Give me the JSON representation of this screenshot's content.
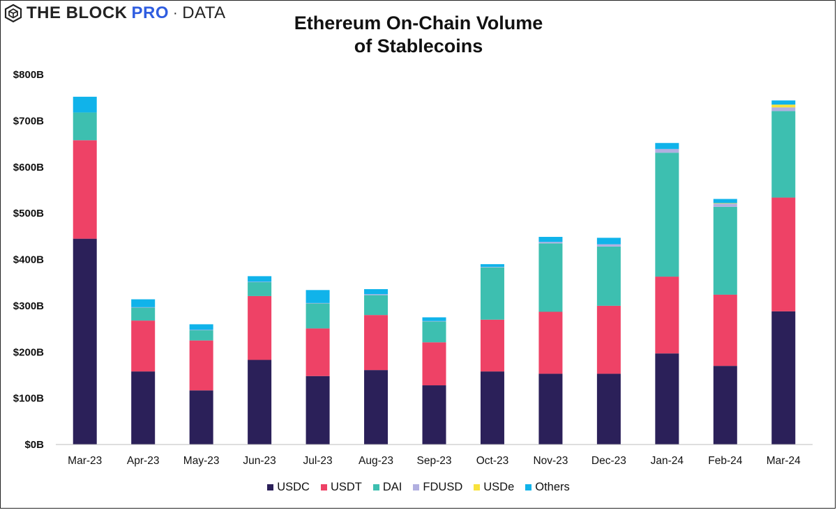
{
  "brand": {
    "part1": "THE BLOCK",
    "part2": "PRO",
    "separator": "·",
    "part3": "DATA",
    "logo_icon": "cube-icon"
  },
  "title_line1": "Ethereum On-Chain Volume",
  "title_line2": "of Stablecoins",
  "colors": {
    "USDC": "#2b2059",
    "USDT": "#ee4266",
    "DAI": "#3dbfb0",
    "FDUSD": "#b1afe0",
    "USDe": "#f8e23c",
    "Others": "#10b3ea"
  },
  "chart_data": {
    "type": "bar",
    "stacked": true,
    "title": "Ethereum On-Chain Volume of Stablecoins",
    "xlabel": "",
    "ylabel": "",
    "ylim": [
      0,
      800
    ],
    "y_unit": "B",
    "y_ticks": [
      "$0B",
      "$100B",
      "$200B",
      "$300B",
      "$400B",
      "$500B",
      "$600B",
      "$700B",
      "$800B"
    ],
    "grid": false,
    "legend_position": "bottom",
    "categories": [
      "Mar-23",
      "Apr-23",
      "May-23",
      "Jun-23",
      "Jul-23",
      "Aug-23",
      "Sep-23",
      "Oct-23",
      "Nov-23",
      "Dec-23",
      "Jan-24",
      "Feb-24",
      "Mar-24"
    ],
    "series": [
      {
        "name": "USDC",
        "values": [
          445,
          158,
          117,
          183,
          148,
          161,
          128,
          158,
          153,
          153,
          197,
          170,
          288
        ]
      },
      {
        "name": "USDT",
        "values": [
          213,
          110,
          108,
          138,
          103,
          119,
          93,
          112,
          134,
          147,
          166,
          154,
          246
        ]
      },
      {
        "name": "DAI",
        "values": [
          60,
          28,
          22,
          30,
          54,
          43,
          45,
          113,
          148,
          128,
          268,
          190,
          187
        ]
      },
      {
        "name": "FDUSD",
        "values": [
          0,
          1,
          1,
          1,
          1,
          2,
          1,
          1,
          3,
          5,
          8,
          7,
          8
        ]
      },
      {
        "name": "USDe",
        "values": [
          0,
          0,
          0,
          0,
          0,
          0,
          0,
          0,
          0,
          0,
          0,
          1,
          6
        ]
      },
      {
        "name": "Others",
        "values": [
          34,
          17,
          12,
          12,
          28,
          11,
          8,
          6,
          11,
          14,
          13,
          9,
          9
        ]
      }
    ]
  }
}
